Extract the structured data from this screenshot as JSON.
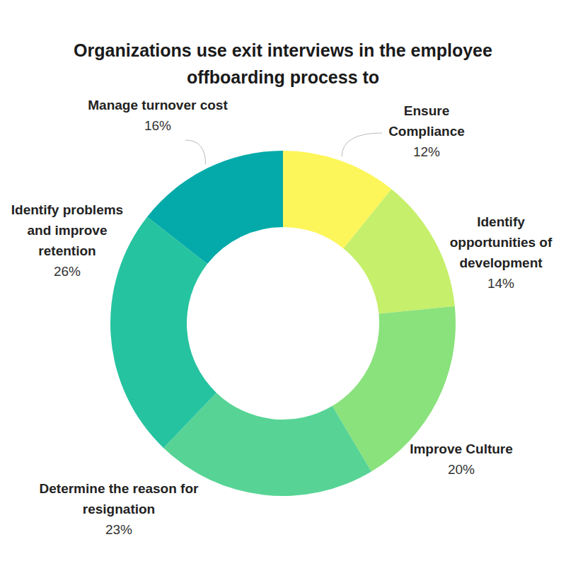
{
  "chart_data": {
    "type": "pie",
    "title": "Organizations use exit interviews in the employee offboarding process to",
    "categories": [
      "Ensure Compliance",
      "Identify opportunities of development",
      "Improve Culture",
      "Determine the reason for resignation",
      "Identify problems and improve retention",
      "Manage turnover cost"
    ],
    "values": [
      12,
      14,
      20,
      23,
      26,
      16
    ],
    "value_labels": [
      "12%",
      "14%",
      "20%",
      "23%",
      "26%",
      "16%"
    ],
    "colors": [
      "#fdf65a",
      "#c6ef6b",
      "#8ae27c",
      "#57d495",
      "#26c3a0",
      "#04aaa9"
    ],
    "data_labels": true
  }
}
